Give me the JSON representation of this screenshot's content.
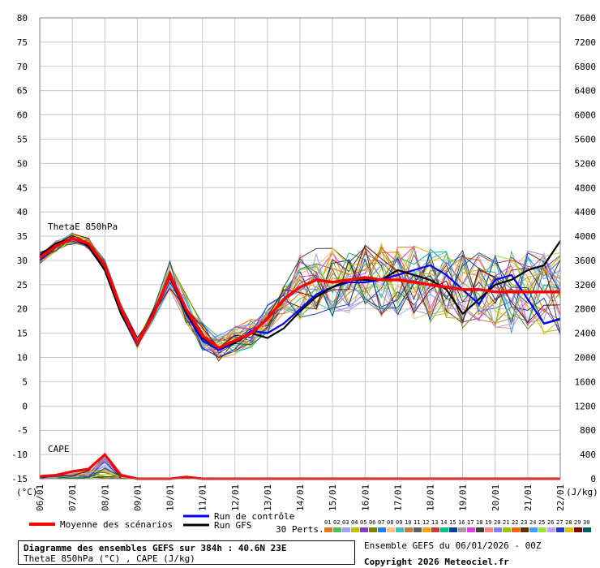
{
  "chart_data": {
    "type": "line",
    "title": "Diagramme des ensembles GEFS sur 384h : 40.6N 23E",
    "subtitle": "ThetaE 850hPa (°C) , CAPE (J/kg)",
    "left_axis": {
      "unit": "(°C)",
      "ticks": [
        80,
        75,
        70,
        65,
        60,
        55,
        50,
        45,
        40,
        35,
        30,
        25,
        20,
        15,
        10,
        5,
        0,
        -5,
        -10,
        -15
      ],
      "range": [
        -15,
        80
      ]
    },
    "right_axis": {
      "unit": "(J/kg)",
      "ticks": [
        7600,
        7200,
        6800,
        6400,
        6000,
        5600,
        5200,
        4800,
        4400,
        4000,
        3600,
        3200,
        2800,
        2400,
        2000,
        1600,
        1200,
        800,
        400,
        0
      ]
    },
    "x_ticks": [
      "06/01",
      "07/01",
      "08/01",
      "09/01",
      "10/01",
      "11/01",
      "12/01",
      "13/01",
      "14/01",
      "15/01",
      "16/01",
      "17/01",
      "18/01",
      "19/01",
      "20/01",
      "21/01",
      "22/01"
    ],
    "panel_labels": {
      "thetae": "ThetaE 850hPa",
      "cape": "CAPE"
    },
    "x_hours": [
      0,
      12,
      24,
      36,
      48,
      60,
      72,
      84,
      96,
      108,
      120,
      132,
      144,
      156,
      168,
      180,
      192,
      204,
      216,
      228,
      240,
      252,
      264,
      276,
      288,
      300,
      312,
      324,
      336,
      348,
      360,
      372,
      384
    ],
    "series": [
      {
        "name": "Moyenne des scénarios",
        "color": "#ff0000",
        "values": [
          30.5,
          33,
          34.5,
          33.5,
          29,
          20,
          13,
          19,
          27,
          20,
          14.5,
          12,
          13.5,
          15,
          18,
          22,
          24.5,
          26,
          25.5,
          26,
          26.5,
          26,
          26,
          25.5,
          25,
          24.5,
          24,
          24,
          23.5,
          23.5,
          23.5,
          23.5,
          23.5
        ]
      },
      {
        "name": "Run de contrôle",
        "color": "#0000ff",
        "values": [
          30,
          33,
          34.5,
          33,
          28,
          19,
          12.5,
          19,
          27,
          19,
          13.5,
          11.5,
          13,
          15.5,
          15,
          17,
          20,
          23,
          24.5,
          25.5,
          25.5,
          26,
          27,
          28,
          29,
          27,
          24,
          21,
          26,
          27,
          22,
          17,
          18
        ]
      },
      {
        "name": "Run GFS",
        "color": "#000000",
        "values": [
          31,
          33.5,
          34.5,
          33,
          28,
          19,
          13,
          19.5,
          26.5,
          19.5,
          14,
          12,
          13,
          15,
          14,
          16,
          19.5,
          22.5,
          24.5,
          26,
          26,
          26,
          28,
          27,
          26,
          24,
          19,
          22,
          25,
          26,
          28,
          29,
          34
        ]
      }
    ],
    "cape_mean_j_kg": [
      40,
      60,
      120,
      160,
      400,
      60,
      0,
      0,
      0,
      30,
      0,
      0,
      0,
      0,
      0,
      0,
      0,
      0,
      0,
      0,
      0,
      0,
      0,
      0,
      0,
      0,
      0,
      0,
      0,
      0,
      0,
      0,
      0
    ]
  },
  "legend": {
    "mean": "Moyenne des scénarios",
    "control": "Run de contrôle",
    "gfs": "Run GFS",
    "perts_label": "30 Perts.",
    "perts": [
      {
        "n": "01",
        "c": "#e07820"
      },
      {
        "n": "02",
        "c": "#50c050"
      },
      {
        "n": "03",
        "c": "#a0a0ff"
      },
      {
        "n": "04",
        "c": "#c0c000"
      },
      {
        "n": "05",
        "c": "#8040c0"
      },
      {
        "n": "06",
        "c": "#808000"
      },
      {
        "n": "07",
        "c": "#2080ff"
      },
      {
        "n": "08",
        "c": "#ffc080"
      },
      {
        "n": "09",
        "c": "#40c0c0"
      },
      {
        "n": "10",
        "c": "#c08040"
      },
      {
        "n": "11",
        "c": "#606060"
      },
      {
        "n": "12",
        "c": "#ffa000"
      },
      {
        "n": "13",
        "c": "#c04040"
      },
      {
        "n": "14",
        "c": "#00c080"
      },
      {
        "n": "15",
        "c": "#0040a0"
      },
      {
        "n": "16",
        "c": "#a0a0a0"
      },
      {
        "n": "17",
        "c": "#e040e0"
      },
      {
        "n": "18",
        "c": "#404040"
      },
      {
        "n": "19",
        "c": "#ff8080"
      },
      {
        "n": "20",
        "c": "#8080ff"
      },
      {
        "n": "21",
        "c": "#a0c000"
      },
      {
        "n": "22",
        "c": "#ff6000"
      },
      {
        "n": "23",
        "c": "#603000"
      },
      {
        "n": "24",
        "c": "#40a0ff"
      },
      {
        "n": "25",
        "c": "#a0e040"
      },
      {
        "n": "26",
        "c": "#c0a0ff"
      },
      {
        "n": "27",
        "c": "#2040c0"
      },
      {
        "n": "28",
        "c": "#e0c000"
      },
      {
        "n": "29",
        "c": "#800000"
      },
      {
        "n": "30",
        "c": "#006060"
      }
    ]
  },
  "info": {
    "line1": "Diagramme des ensembles GEFS sur 384h : 40.6N 23E",
    "line2": "ThetaE 850hPa (°C) , CAPE (J/kg)",
    "run": "Ensemble GEFS du 06/01/2026 - 00Z",
    "copyright": "Copyright 2026 Meteociel.fr"
  }
}
